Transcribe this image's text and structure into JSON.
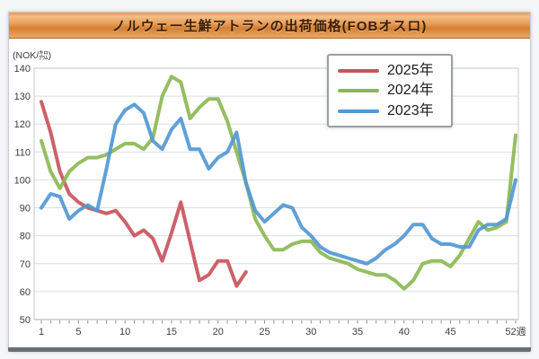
{
  "window": {
    "title": "ノルウェー生鮮アトランの出荷価格(FOBオスロ)"
  },
  "chart_data": {
    "type": "line",
    "title": "ノルウェー生鮮アトランの出荷価格(FOBオスロ)",
    "unit_label": "(NOK/㌕)",
    "ylabel": "NOK per kg",
    "ylim": [
      50,
      140
    ],
    "y_ticks": [
      140,
      130,
      120,
      110,
      100,
      90,
      80,
      70,
      60,
      50
    ],
    "x_unit": "週",
    "x_range_weeks": [
      1,
      52
    ],
    "x_tick_labels": [
      "1",
      "5",
      "10",
      "15",
      "20",
      "25",
      "30",
      "35",
      "40",
      "45",
      "52週"
    ],
    "x_tick_weeks": [
      1,
      5,
      10,
      15,
      20,
      25,
      30,
      35,
      40,
      45,
      52
    ],
    "grid": "horizontal",
    "legend_position": "top-right",
    "series": [
      {
        "name": "2025年",
        "color": "#c9545c",
        "start_week": 1,
        "values": [
          128,
          117,
          103,
          95,
          92,
          90,
          89,
          88,
          89,
          85,
          80,
          82,
          79,
          71,
          81,
          92,
          78,
          64,
          66,
          71,
          71,
          62,
          67
        ]
      },
      {
        "name": "2024年",
        "color": "#8cb854",
        "start_week": 1,
        "values": [
          114,
          103,
          97,
          103,
          106,
          108,
          108,
          109,
          111,
          113,
          113,
          111,
          115,
          130,
          137,
          135,
          122,
          126,
          129,
          129,
          121,
          110,
          99,
          86,
          80,
          75,
          75,
          77,
          78,
          78,
          74,
          72,
          71,
          70,
          68,
          67,
          66,
          66,
          64,
          61,
          64,
          70,
          71,
          71,
          69,
          73,
          79,
          85,
          82,
          83,
          85,
          116
        ]
      },
      {
        "name": "2023年",
        "color": "#5398d4",
        "start_week": 1,
        "values": [
          90,
          95,
          94,
          86,
          89,
          91,
          89,
          104,
          120,
          125,
          127,
          124,
          114,
          111,
          118,
          122,
          111,
          111,
          104,
          108,
          110,
          117,
          99,
          89,
          85,
          88,
          91,
          90,
          83,
          80,
          76,
          74,
          73,
          72,
          71,
          70,
          72,
          75,
          77,
          80,
          84,
          84,
          79,
          77,
          77,
          76,
          76,
          82,
          84,
          84,
          86,
          100
        ]
      }
    ]
  },
  "colors": {
    "grid_line": "#dadde0",
    "plot_border": "#c4c8cc",
    "axis_line": "#8a8f94",
    "tick_text": "#3c3c3c",
    "unit_text": "#3c3c3c"
  }
}
